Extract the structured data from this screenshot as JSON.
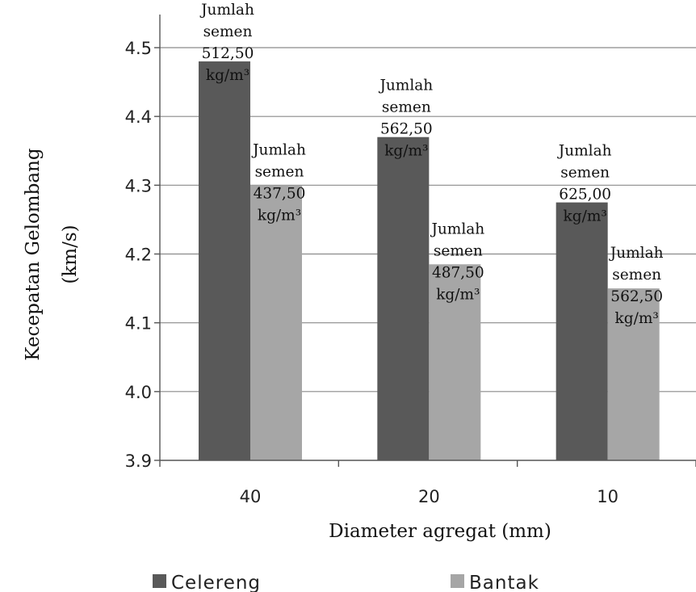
{
  "chart_data": {
    "type": "bar",
    "categories": [
      "40",
      "20",
      "10"
    ],
    "series": [
      {
        "name": "Celereng",
        "color": "#595959",
        "values": [
          4.48,
          4.37,
          4.275
        ]
      },
      {
        "name": "Bantak",
        "color": "#a6a6a6",
        "values": [
          4.3,
          4.185,
          4.15
        ]
      }
    ],
    "data_labels": [
      [
        [
          "Jumlah",
          "semen",
          "512,50",
          "kg/m³"
        ],
        [
          "Jumlah",
          "semen",
          "562,50",
          "kg/m³"
        ],
        [
          "Jumlah",
          "semen",
          "625,00",
          "kg/m³"
        ]
      ],
      [
        [
          "Jumlah",
          "semen",
          "437,50",
          "kg/m³"
        ],
        [
          "Jumlah",
          "semen",
          "487,50",
          "kg/m³"
        ],
        [
          "Jumlah",
          "semen",
          "562,50",
          "kg/m³"
        ]
      ]
    ],
    "title": "",
    "xlabel": "Diameter  agregat (mm)",
    "ylabel_lines": [
      "Kecepatan Gelombang",
      "(km/s)"
    ],
    "ylim": [
      3.9,
      4.5
    ],
    "y_ticks": [
      "3.9",
      "4.0",
      "4.1",
      "4.2",
      "4.3",
      "4.4",
      "4.5"
    ],
    "grid": true,
    "legend_position": "bottom"
  }
}
